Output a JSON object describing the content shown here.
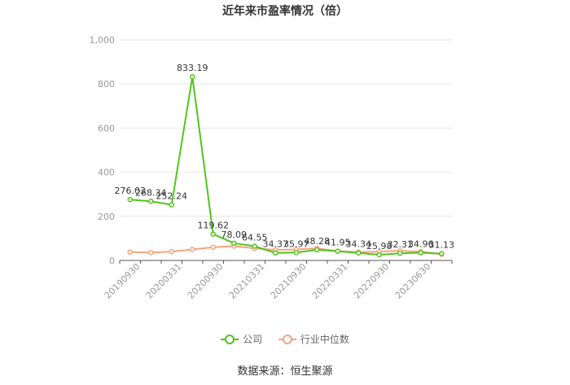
{
  "source_text": "数据来源：恒生聚源",
  "chart_data": {
    "type": "line",
    "title": "近年来市盈率情况（倍）",
    "xlabel": "",
    "ylabel": "",
    "ylim": [
      0,
      1000
    ],
    "y_ticks": [
      "0",
      "200",
      "400",
      "600",
      "800",
      "1,000"
    ],
    "x_tick_labels": [
      "20190930",
      "20200331",
      "20200930",
      "20210331",
      "20210930",
      "20220331",
      "20220930",
      "20230630"
    ],
    "grid": true,
    "legend_position": "bottom",
    "series": [
      {
        "name": "公司",
        "color": "#52c41a",
        "values": [
          276.03,
          268.34,
          252.24,
          833.19,
          119.62,
          78.09,
          64.55,
          34.37,
          35.97,
          48.28,
          41.95,
          34.34,
          25.98,
          32.31,
          34.96,
          31.13
        ],
        "labels": [
          "276.03",
          "268.34",
          "252.24",
          "833.19",
          "119.62",
          "78.09",
          "64.55",
          "34.37",
          "35.97",
          "48.28",
          "41.95",
          "34.34",
          "25.98",
          "32.31",
          "34.96",
          "31.13"
        ]
      },
      {
        "name": "行业中位数",
        "color": "#f7a27e",
        "values": [
          38,
          36,
          40,
          50,
          60,
          65,
          55,
          48,
          50,
          55,
          42,
          38,
          40,
          44,
          40,
          28
        ]
      }
    ]
  }
}
